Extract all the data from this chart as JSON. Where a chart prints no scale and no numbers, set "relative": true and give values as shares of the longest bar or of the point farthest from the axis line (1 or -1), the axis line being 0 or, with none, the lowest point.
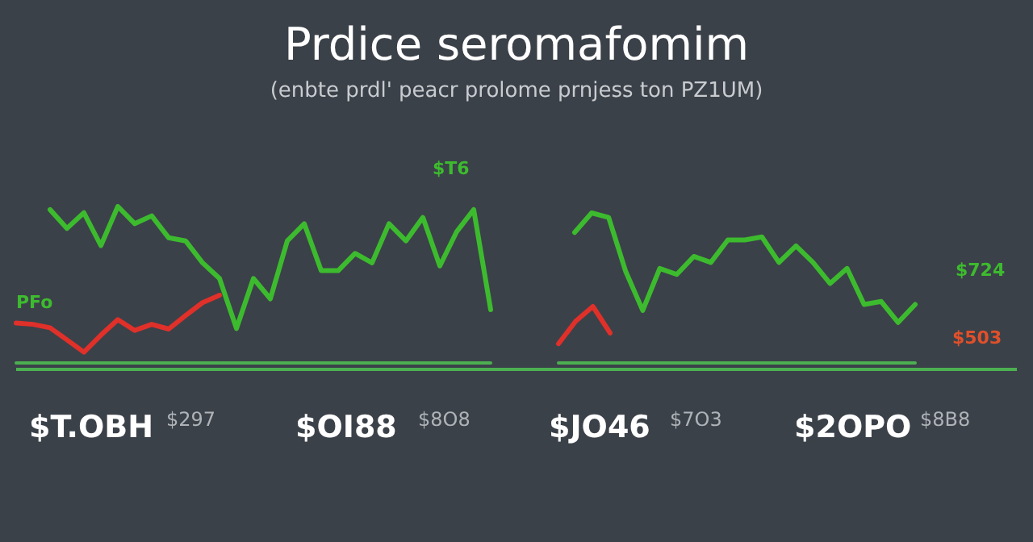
{
  "chart_data": [
    {
      "type": "line",
      "title": "Prdice seromafomim",
      "subtitle": "(enbte prdl' peacr prolome prnjess ton PZ1UM)",
      "relative": true,
      "marker": "none",
      "line_style": "solid",
      "categories": [
        null,
        null,
        null,
        null,
        null,
        null,
        null,
        null,
        null,
        null,
        null,
        null,
        null,
        null,
        null,
        null,
        null,
        null,
        null,
        null,
        null,
        null,
        null,
        null,
        null,
        null,
        null
      ],
      "series": [
        {
          "color": "#3dbb2e",
          "values": [
            0.98,
            0.86,
            0.96,
            0.75,
            1,
            0.89,
            0.94,
            0.8,
            0.78,
            0.64,
            0.54,
            0.22,
            0.54,
            0.41,
            0.78,
            0.89,
            0.59,
            0.59,
            0.7,
            0.64,
            0.89,
            0.78,
            0.93,
            0.62,
            0.84,
            0.98,
            0.34
          ]
        }
      ],
      "annotations": [
        "PFo",
        "$T6",
        "$724",
        "$503",
        "$T.OBH",
        "$297",
        "$OI88",
        "$8O8",
        "$JO46",
        "$7O3",
        "$2OPO",
        "$8B8"
      ]
    },
    {
      "type": "line",
      "relative": true,
      "marker": "none",
      "line_style": "solid",
      "categories": [
        null,
        null,
        null,
        null,
        null,
        null,
        null,
        null,
        null,
        null,
        null,
        null,
        null,
        null,
        null,
        null,
        null,
        null,
        null,
        null,
        null
      ],
      "series": [
        {
          "color": "#3dbb2e",
          "values": [
            0.87,
            1,
            0.97,
            0.61,
            0.35,
            0.63,
            0.59,
            0.71,
            0.67,
            0.82,
            0.82,
            0.84,
            0.67,
            0.78,
            0.67,
            0.53,
            0.63,
            0.39,
            0.41,
            0.27,
            0.39
          ]
        }
      ]
    },
    {
      "type": "line",
      "relative": true,
      "marker": "none",
      "line_style": "solid",
      "categories": [
        null,
        null,
        null,
        null,
        null,
        null,
        null,
        null,
        null,
        null,
        null,
        null,
        null
      ],
      "series": [
        {
          "color": "#e0302a",
          "values": [
            0.59,
            0.57,
            0.52,
            0.34,
            0.16,
            0.41,
            0.64,
            0.48,
            0.57,
            0.5,
            0.7,
            0.89,
            1
          ]
        }
      ]
    },
    {
      "type": "line",
      "relative": true,
      "marker": "none",
      "line_style": "solid",
      "categories": [
        null,
        null,
        null,
        null
      ],
      "series": [
        {
          "color": "#e0302a",
          "values": [
            0.34,
            0.74,
            1,
            0.53
          ]
        }
      ]
    }
  ]
}
